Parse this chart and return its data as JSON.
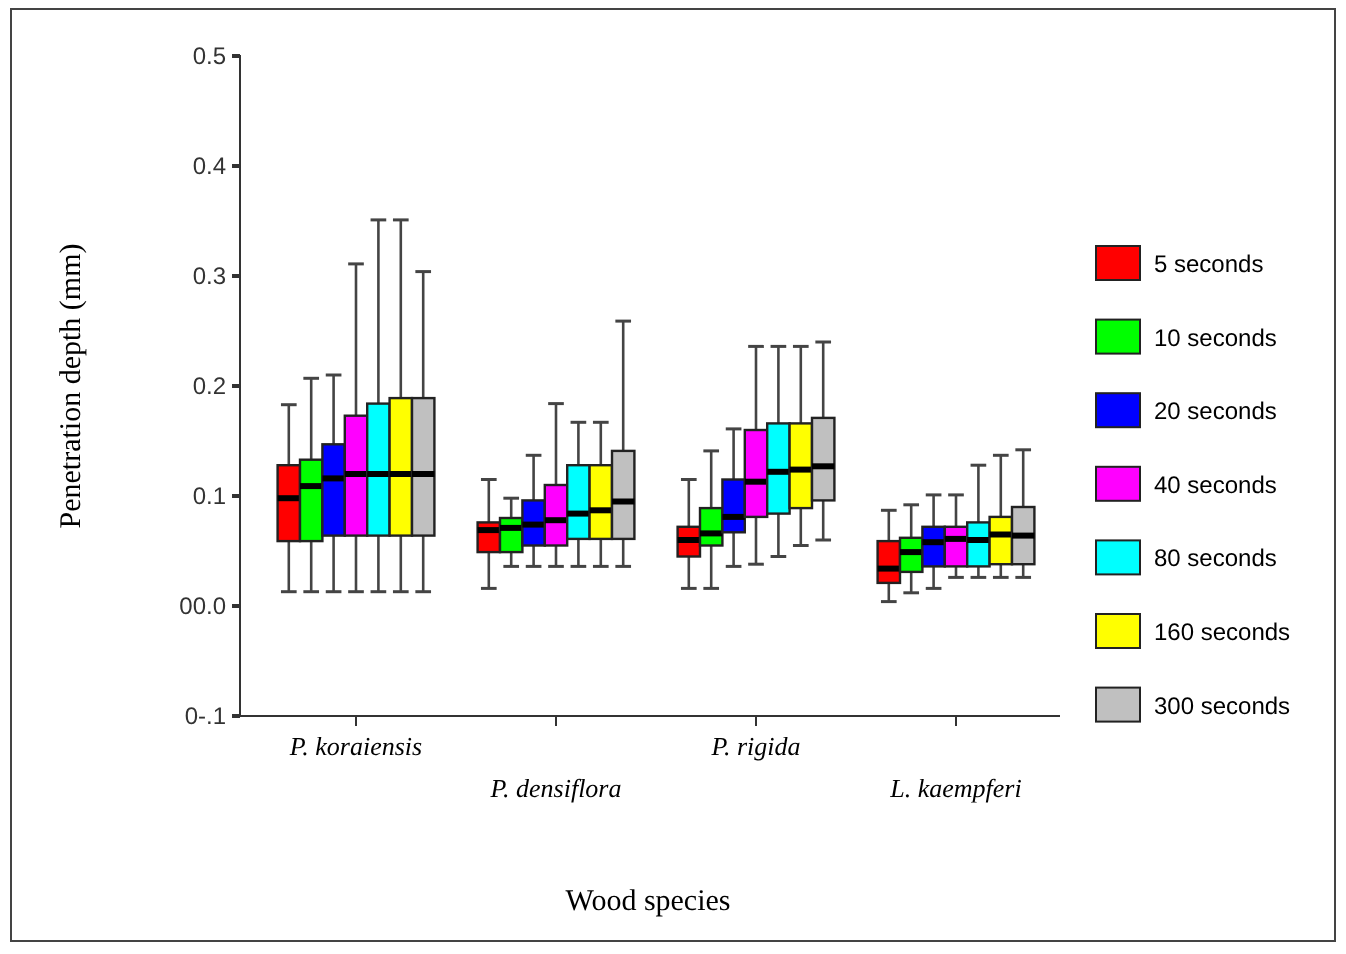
{
  "chart_data": {
    "type": "box",
    "xlabel": "Wood species",
    "ylabel": "Penetration depth (mm)",
    "categories": [
      "P. koraiensis",
      "P. densiflora",
      "P. rigida",
      "L. kaempferi"
    ],
    "ylim": [
      -0.1,
      0.5
    ],
    "yticks": [
      {
        "value": -0.1,
        "label": "0-.1"
      },
      {
        "value": 0,
        "label": "00.0"
      },
      0.1,
      0.2,
      0.3,
      0.4,
      0.5
    ],
    "legend": "right",
    "series": [
      {
        "name": "5 seconds",
        "color": "#ff0000",
        "boxes": [
          {
            "low": 0.013,
            "q1": 0.059,
            "median": 0.098,
            "q3": 0.128,
            "high": 0.183
          },
          {
            "low": 0.016,
            "q1": 0.049,
            "median": 0.069,
            "q3": 0.076,
            "high": 0.115
          },
          {
            "low": 0.016,
            "q1": 0.045,
            "median": 0.06,
            "q3": 0.072,
            "high": 0.115
          },
          {
            "low": 0.004,
            "q1": 0.021,
            "median": 0.034,
            "q3": 0.059,
            "high": 0.087
          }
        ]
      },
      {
        "name": "10 seconds",
        "color": "#00ff00",
        "boxes": [
          {
            "low": 0.013,
            "q1": 0.059,
            "median": 0.109,
            "q3": 0.133,
            "high": 0.207
          },
          {
            "low": 0.036,
            "q1": 0.049,
            "median": 0.071,
            "q3": 0.08,
            "high": 0.098
          },
          {
            "low": 0.016,
            "q1": 0.055,
            "median": 0.066,
            "q3": 0.089,
            "high": 0.141
          },
          {
            "low": 0.012,
            "q1": 0.031,
            "median": 0.049,
            "q3": 0.062,
            "high": 0.092
          }
        ]
      },
      {
        "name": "20 seconds",
        "color": "#0000ff",
        "boxes": [
          {
            "low": 0.013,
            "q1": 0.064,
            "median": 0.116,
            "q3": 0.147,
            "high": 0.21
          },
          {
            "low": 0.036,
            "q1": 0.055,
            "median": 0.074,
            "q3": 0.096,
            "high": 0.137
          },
          {
            "low": 0.036,
            "q1": 0.067,
            "median": 0.081,
            "q3": 0.115,
            "high": 0.161
          },
          {
            "low": 0.016,
            "q1": 0.036,
            "median": 0.058,
            "q3": 0.072,
            "high": 0.101
          }
        ]
      },
      {
        "name": "40 seconds",
        "color": "#ff00ff",
        "boxes": [
          {
            "low": 0.013,
            "q1": 0.064,
            "median": 0.12,
            "q3": 0.173,
            "high": 0.311
          },
          {
            "low": 0.036,
            "q1": 0.055,
            "median": 0.078,
            "q3": 0.11,
            "high": 0.184
          },
          {
            "low": 0.038,
            "q1": 0.081,
            "median": 0.113,
            "q3": 0.16,
            "high": 0.236
          },
          {
            "low": 0.026,
            "q1": 0.036,
            "median": 0.061,
            "q3": 0.072,
            "high": 0.101
          }
        ]
      },
      {
        "name": "80 seconds",
        "color": "#00ffff",
        "boxes": [
          {
            "low": 0.013,
            "q1": 0.064,
            "median": 0.12,
            "q3": 0.184,
            "high": 0.351
          },
          {
            "low": 0.036,
            "q1": 0.061,
            "median": 0.084,
            "q3": 0.128,
            "high": 0.167
          },
          {
            "low": 0.045,
            "q1": 0.084,
            "median": 0.122,
            "q3": 0.166,
            "high": 0.236
          },
          {
            "low": 0.026,
            "q1": 0.036,
            "median": 0.06,
            "q3": 0.076,
            "high": 0.128
          }
        ]
      },
      {
        "name": "160 seconds",
        "color": "#ffff00",
        "boxes": [
          {
            "low": 0.013,
            "q1": 0.064,
            "median": 0.12,
            "q3": 0.189,
            "high": 0.351
          },
          {
            "low": 0.036,
            "q1": 0.061,
            "median": 0.087,
            "q3": 0.128,
            "high": 0.167
          },
          {
            "low": 0.055,
            "q1": 0.089,
            "median": 0.124,
            "q3": 0.166,
            "high": 0.236
          },
          {
            "low": 0.026,
            "q1": 0.038,
            "median": 0.065,
            "q3": 0.081,
            "high": 0.137
          }
        ]
      },
      {
        "name": "300 seconds",
        "color": "#c0c0c0",
        "boxes": [
          {
            "low": 0.013,
            "q1": 0.064,
            "median": 0.12,
            "q3": 0.189,
            "high": 0.304
          },
          {
            "low": 0.036,
            "q1": 0.061,
            "median": 0.095,
            "q3": 0.141,
            "high": 0.259
          },
          {
            "low": 0.06,
            "q1": 0.096,
            "median": 0.127,
            "q3": 0.171,
            "high": 0.24
          },
          {
            "low": 0.026,
            "q1": 0.038,
            "median": 0.064,
            "q3": 0.09,
            "high": 0.142
          }
        ]
      }
    ]
  }
}
